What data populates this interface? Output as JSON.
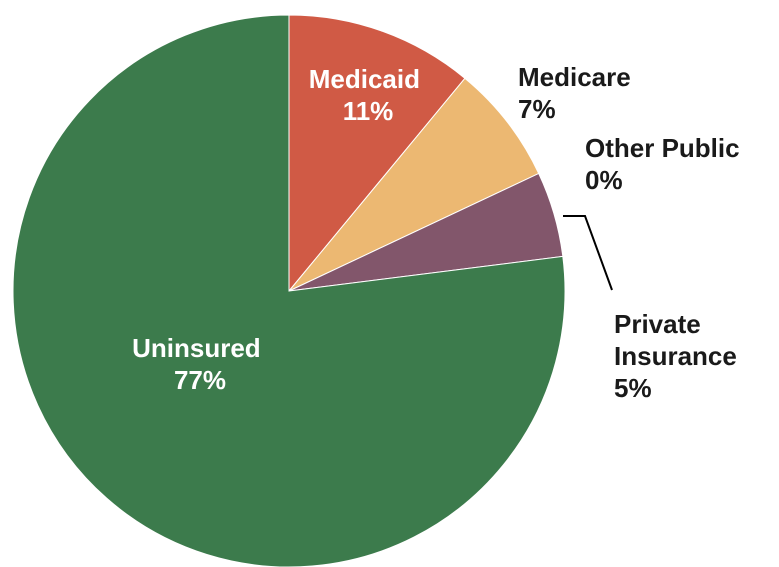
{
  "chart_data": {
    "type": "pie",
    "start_angle_deg": 0,
    "direction": "clockwise",
    "slices": [
      {
        "label": "Medicaid",
        "value_label": "11%",
        "value": 11,
        "color": "#d05a45",
        "label_color": "#ffffff"
      },
      {
        "label": "Medicare",
        "value_label": "7%",
        "value": 7,
        "color": "#ecb872",
        "label_color": "#1a1a1a"
      },
      {
        "label": "Other Public",
        "value_label": "0%",
        "value": 0,
        "color": "#c9b7c2",
        "label_color": "#1a1a1a"
      },
      {
        "label": "Private Insurance",
        "value_label": "5%",
        "value": 5,
        "color": "#82566b",
        "label_color": "#1a1a1a"
      },
      {
        "label": "Uninsured",
        "value_label": "77%",
        "value": 77,
        "color": "#3c7b4c",
        "label_color": "#ffffff"
      }
    ]
  }
}
